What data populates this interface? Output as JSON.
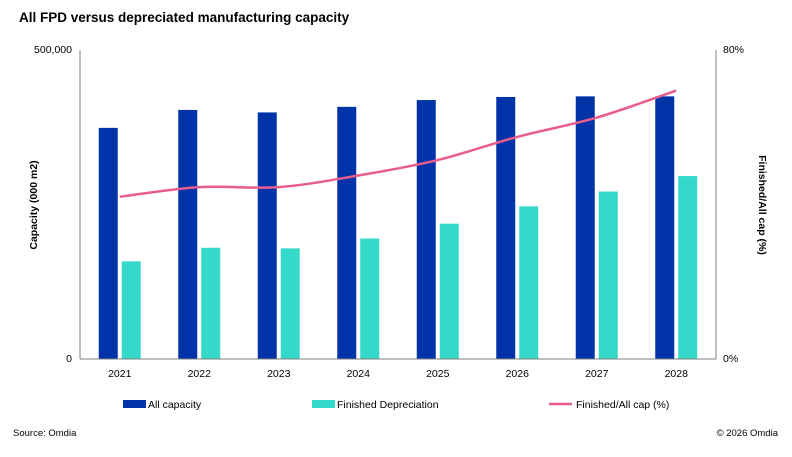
{
  "chart_data": {
    "type": "bar",
    "title": "All FPD versus depreciated manufacturing capacity",
    "categories": [
      "2021",
      "2022",
      "2023",
      "2024",
      "2025",
      "2026",
      "2027",
      "2028"
    ],
    "series": [
      {
        "name": "All capacity",
        "type": "bar",
        "axis": "left",
        "color": "#0033a8",
        "values": [
          374000,
          403000,
          399000,
          408000,
          419000,
          424000,
          425000,
          425000
        ]
      },
      {
        "name": "Finished Depreciation",
        "type": "bar",
        "axis": "left",
        "color": "#35d9c9",
        "values": [
          158000,
          180000,
          179000,
          195000,
          219000,
          247000,
          271000,
          296000
        ]
      },
      {
        "name": "Finished/All cap (%)",
        "type": "line",
        "axis": "right",
        "color": "#e85d8c",
        "values": [
          42,
          44.5,
          44.5,
          47.5,
          51.5,
          57.5,
          62.5,
          69.5
        ]
      }
    ],
    "ylabel": "Capacity (000 m2)",
    "y2label": "Finished/All cap (%)",
    "ylim": [
      0,
      500000
    ],
    "y2lim": [
      0,
      80
    ],
    "yticks": [
      "0",
      "500,000"
    ],
    "y2ticks": [
      "0%",
      "80%"
    ],
    "legend": "bottom",
    "grid": false
  },
  "footer": {
    "source": "Source: Omdia",
    "copyright": "© 2026 Omdia"
  }
}
